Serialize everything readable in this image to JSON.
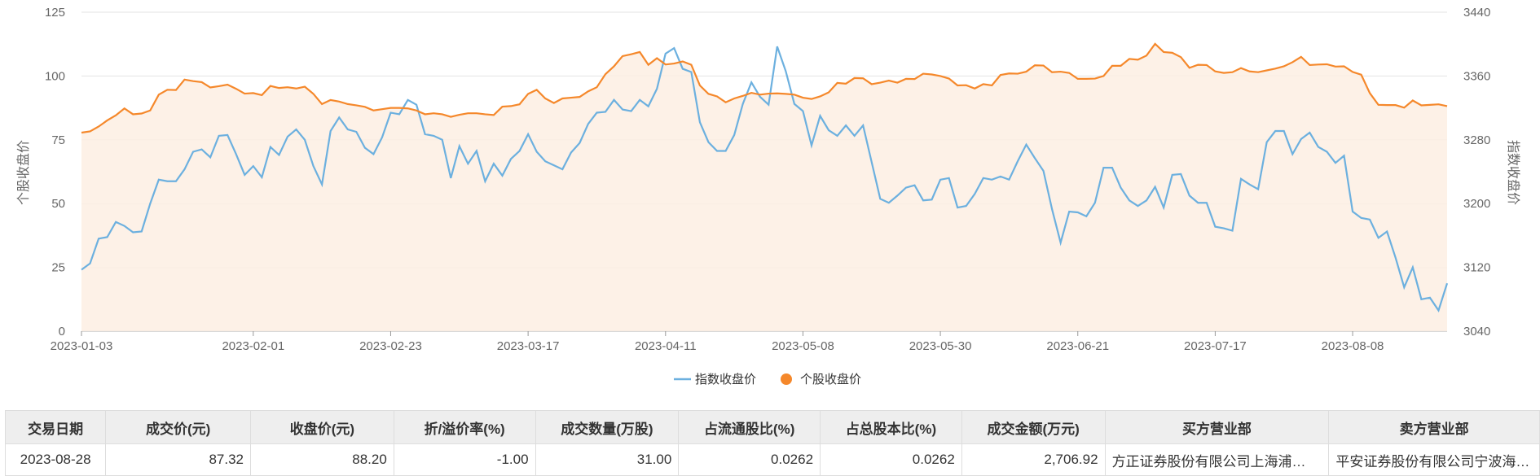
{
  "chart_data": {
    "type": "line",
    "x_tick_labels": [
      "2023-01-03",
      "2023-02-01",
      "2023-02-23",
      "2023-03-17",
      "2023-04-11",
      "2023-05-08",
      "2023-05-30",
      "2023-06-21",
      "2023-07-17",
      "2023-08-08"
    ],
    "x_tick_indices": [
      0,
      20,
      36,
      52,
      68,
      84,
      100,
      116,
      132,
      148
    ],
    "y_left": {
      "label": "个股收盘价",
      "ticks": [
        0,
        25,
        50,
        75,
        100,
        125
      ],
      "range": [
        0,
        125
      ]
    },
    "y_right": {
      "label": "指数收盘价",
      "ticks": [
        3040,
        3120,
        3200,
        3280,
        3360,
        3440
      ],
      "range": [
        3040,
        3440
      ]
    },
    "legend_position": "bottom-center",
    "grid": true,
    "series": [
      {
        "name": "指数收盘价",
        "axis": "right",
        "color": "#6cb0df",
        "values": [
          3117,
          3125,
          3156,
          3158,
          3177,
          3172,
          3164,
          3165,
          3200,
          3230,
          3228,
          3228,
          3243,
          3265,
          3268,
          3258,
          3285,
          3286,
          3262,
          3236,
          3247,
          3233,
          3271,
          3261,
          3284,
          3293,
          3280,
          3247,
          3224,
          3291,
          3308,
          3293,
          3290,
          3270,
          3262,
          3283,
          3314,
          3312,
          3330,
          3324,
          3287,
          3285,
          3280,
          3232,
          3272,
          3250,
          3266,
          3228,
          3250,
          3235,
          3256,
          3266,
          3287,
          3265,
          3253,
          3248,
          3243,
          3264,
          3276,
          3300,
          3314,
          3315,
          3330,
          3318,
          3316,
          3330,
          3322,
          3344,
          3388,
          3395,
          3369,
          3365,
          3302,
          3277,
          3266,
          3266,
          3286,
          3325,
          3352,
          3334,
          3324,
          3397,
          3366,
          3325,
          3316,
          3273,
          3310,
          3292,
          3285,
          3298,
          3285,
          3298,
          3252,
          3206,
          3201,
          3210,
          3220,
          3223,
          3204,
          3205,
          3230,
          3232,
          3195,
          3197,
          3212,
          3232,
          3230,
          3234,
          3230,
          3253,
          3274,
          3257,
          3241,
          3193,
          3151,
          3190,
          3189,
          3184,
          3201,
          3245,
          3245,
          3220,
          3204,
          3197,
          3204,
          3221,
          3195,
          3236,
          3237,
          3210,
          3201,
          3201,
          3171,
          3169,
          3166,
          3231,
          3224,
          3218,
          3277,
          3291,
          3291,
          3262,
          3281,
          3289,
          3271,
          3265,
          3251,
          3260,
          3190,
          3182,
          3180,
          3157,
          3165,
          3132,
          3095,
          3120,
          3080,
          3082,
          3066,
          3100
        ]
      },
      {
        "name": "个股收盘价",
        "axis": "left",
        "color": "#f5882b",
        "values": [
          77.8,
          78.3,
          80.2,
          82.6,
          84.6,
          87.3,
          85.0,
          85.3,
          86.5,
          92.7,
          94.6,
          94.5,
          98.6,
          98.0,
          97.6,
          95.5,
          96.0,
          96.6,
          95.0,
          93.1,
          93.3,
          92.5,
          96.1,
          95.3,
          95.6,
          95.1,
          95.8,
          93.0,
          89.0,
          90.6,
          90.0,
          89.0,
          88.5,
          87.9,
          86.5,
          87.0,
          87.5,
          87.5,
          87.3,
          86.5,
          85.0,
          85.4,
          85.0,
          84.0,
          84.8,
          85.4,
          85.4,
          85.0,
          84.7,
          88.0,
          88.2,
          88.9,
          93.0,
          94.6,
          91.2,
          89.4,
          91.2,
          91.5,
          91.8,
          94.0,
          95.6,
          100.7,
          103.8,
          107.8,
          108.5,
          109.4,
          104.4,
          107.0,
          104.5,
          104.9,
          105.7,
          104.4,
          96.3,
          93.0,
          92.0,
          89.7,
          91.2,
          92.2,
          93.4,
          92.7,
          93.1,
          93.2,
          93.0,
          92.7,
          91.5,
          91.0,
          92.0,
          93.6,
          97.3,
          97.0,
          99.2,
          99.1,
          96.8,
          97.4,
          98.2,
          97.4,
          98.9,
          98.8,
          100.9,
          100.6,
          100.0,
          99.0,
          96.3,
          96.4,
          95.1,
          96.8,
          96.3,
          100.4,
          101.0,
          100.9,
          101.7,
          104.2,
          104.1,
          101.5,
          101.7,
          101.2,
          98.9,
          98.9,
          99.0,
          100.0,
          104.0,
          104.0,
          106.7,
          106.4,
          108.0,
          112.6,
          109.4,
          109.1,
          107.4,
          103.2,
          104.4,
          104.3,
          101.8,
          101.2,
          101.5,
          103.1,
          101.8,
          101.5,
          102.2,
          102.9,
          103.8,
          105.4,
          107.5,
          104.3,
          104.5,
          104.6,
          103.7,
          103.8,
          101.6,
          100.5,
          93.3,
          88.7,
          88.6,
          88.6,
          87.6,
          90.4,
          88.5,
          88.7,
          88.9,
          88.2
        ]
      }
    ]
  },
  "legend": [
    {
      "label": "指数收盘价",
      "color": "#6cb0df"
    },
    {
      "label": "个股收盘价",
      "color": "#f5882b"
    }
  ],
  "table": {
    "headers": [
      "交易日期",
      "成交价(元)",
      "收盘价(元)",
      "折/溢价率(%)",
      "成交数量(万股)",
      "占流通股比(%)",
      "占总股本比(%)",
      "成交金额(万元)",
      "买方营业部",
      "卖方营业部"
    ],
    "row": [
      "2023-08-28",
      "87.32",
      "88.20",
      "-1.00",
      "31.00",
      "0.0262",
      "0.0262",
      "2,706.92",
      "方正证券股份有限公司上海浦…",
      "平安证券股份有限公司宁波海…"
    ]
  }
}
